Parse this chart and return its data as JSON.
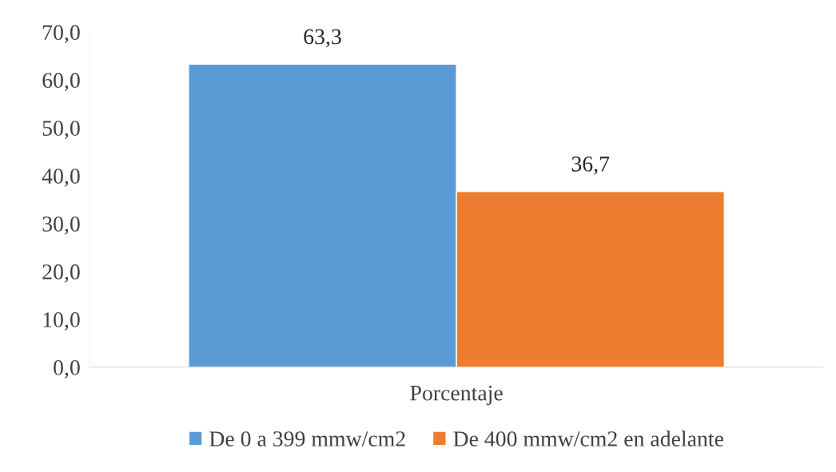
{
  "chart_data": {
    "type": "bar",
    "categories": [
      "Porcentaje"
    ],
    "series": [
      {
        "name": "De 0 a 399 mmw/cm2",
        "color": "#5b9bd5",
        "values": [
          63.3
        ],
        "value_labels": [
          "63,3"
        ]
      },
      {
        "name": "De 400 mmw/cm2 en adelante",
        "color": "#ed7d31",
        "values": [
          36.7
        ],
        "value_labels": [
          "36,7"
        ]
      }
    ],
    "ylim": [
      0,
      70
    ],
    "yticks": [
      {
        "value": 0,
        "label": "0,0"
      },
      {
        "value": 10,
        "label": "10,0"
      },
      {
        "value": 20,
        "label": "20,0"
      },
      {
        "value": 30,
        "label": "30,0"
      },
      {
        "value": 40,
        "label": "40,0"
      },
      {
        "value": 50,
        "label": "50,0"
      },
      {
        "value": 60,
        "label": "60,0"
      },
      {
        "value": 70,
        "label": "70,0"
      }
    ],
    "grid": false,
    "legend": "bottom"
  }
}
